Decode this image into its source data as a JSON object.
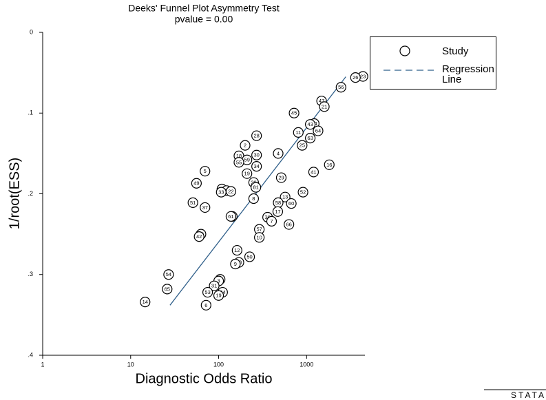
{
  "chart_data": {
    "type": "scatter",
    "title": "Deeks' Funnel Plot Asymmetry Test",
    "subtitle": "pvalue =   0.00",
    "x_label": "Diagnostic Odds Ratio",
    "y_label": "1/root(ESS)",
    "x_log": true,
    "y_inverted": true,
    "xlim": [
      1,
      4600
    ],
    "xticks": [
      1,
      10,
      100,
      1000
    ],
    "ylim": [
      0.4,
      0
    ],
    "yticks": [
      {
        "value": 0,
        "label": "0"
      },
      {
        "value": 0.1,
        "label": ".1"
      },
      {
        "value": 0.2,
        "label": ".2"
      },
      {
        "value": 0.3,
        "label": ".3"
      },
      {
        "value": 0.4,
        "label": ".4"
      }
    ],
    "legend_position": "upper right",
    "series": [
      {
        "name": "Study",
        "color": "#000000",
        "x": [
          4370,
          3590,
          2460,
          1480,
          1590,
          720,
          1220,
          1100,
          805,
          1350,
          1100,
          890,
          475,
          1200,
          1810,
          515,
          910,
          570,
          475,
          670,
          470,
          360,
          400,
          630,
          290,
          290,
          200,
          270,
          170,
          270,
          210,
          170,
          270,
          70,
          210,
          56,
          250,
          265,
          109,
          123,
          138,
          107,
          250,
          51,
          70,
          143,
          138,
          63,
          60,
          162,
          225,
          170,
          155,
          27,
          26,
          104,
          100,
          89,
          75,
          111,
          100,
          72,
          14.6
        ],
        "values": [
          0.0546,
          0.056,
          0.068,
          0.085,
          0.092,
          0.1,
          0.113,
          0.114,
          0.124,
          0.122,
          0.131,
          0.14,
          0.15,
          0.173,
          0.164,
          0.18,
          0.198,
          0.204,
          0.211,
          0.212,
          0.222,
          0.229,
          0.234,
          0.238,
          0.244,
          0.254,
          0.14,
          0.128,
          0.153,
          0.152,
          0.158,
          0.161,
          0.166,
          0.172,
          0.175,
          0.187,
          0.186,
          0.192,
          0.194,
          0.196,
          0.197,
          0.198,
          0.206,
          0.211,
          0.217,
          0.228,
          0.228,
          0.25,
          0.253,
          0.27,
          0.278,
          0.285,
          0.287,
          0.3,
          0.318,
          0.306,
          0.308,
          0.314,
          0.322,
          0.322,
          0.326,
          0.338,
          0.334
        ],
        "point_labels": [
          "23",
          "26",
          "56",
          "47",
          "21",
          "45",
          "44",
          "43",
          "11",
          "64",
          "63",
          "25",
          "4",
          "41",
          "16",
          "29",
          "52",
          "13",
          "58",
          "60",
          "17",
          "36",
          "7",
          "66",
          "57",
          "10",
          "2",
          "28",
          "18",
          "30",
          "59",
          "55",
          "34",
          "5",
          "19",
          "49",
          "20",
          "81",
          "39",
          "32",
          "22",
          "33",
          "8",
          "51",
          "37",
          "35",
          "61",
          "48",
          "42",
          "12",
          "50",
          "38",
          "9",
          "54",
          "65",
          "27",
          "3",
          "31",
          "53",
          "24",
          "19",
          "6",
          "14"
        ]
      }
    ],
    "regression_line": {
      "name": "Regression Line",
      "color": "#2f5f8a",
      "x": [
        28,
        2790
      ],
      "values": [
        0.338,
        0.055
      ]
    },
    "watermark": "STATA"
  }
}
